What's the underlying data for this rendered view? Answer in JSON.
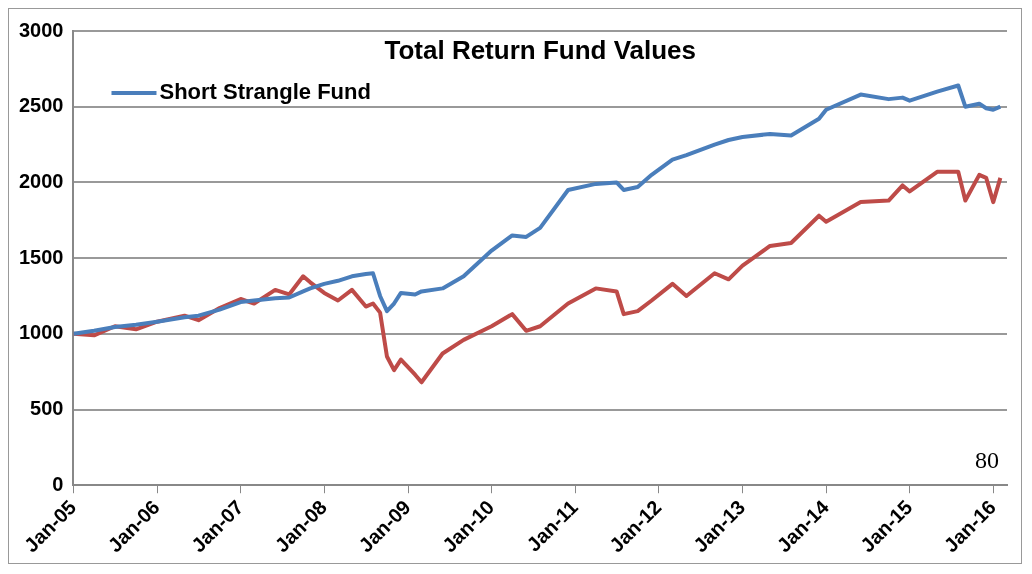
{
  "chart_data": {
    "type": "line",
    "title": "Total Return Fund Values",
    "x": [
      "2005-01",
      "2005-04",
      "2005-07",
      "2005-10",
      "2006-01",
      "2006-05",
      "2006-07",
      "2006-10",
      "2007-01",
      "2007-03",
      "2007-06",
      "2007-08",
      "2007-10",
      "2007-11",
      "2008-01",
      "2008-03",
      "2008-05",
      "2008-07",
      "2008-08",
      "2008-09",
      "2008-10",
      "2008-11",
      "2008-12",
      "2009-02",
      "2009-03",
      "2009-06",
      "2009-09",
      "2010-01",
      "2010-04",
      "2010-06",
      "2010-08",
      "2010-12",
      "2011-04",
      "2011-07",
      "2011-08",
      "2011-10",
      "2011-12",
      "2012-03",
      "2012-05",
      "2012-09",
      "2012-11",
      "2013-01",
      "2013-05",
      "2013-08",
      "2013-12",
      "2014-01",
      "2014-06",
      "2014-10",
      "2014-12",
      "2015-01",
      "2015-05",
      "2015-08",
      "2015-09",
      "2015-11",
      "2015-12",
      "2016-01",
      "2016-02"
    ],
    "series": [
      {
        "name": "Short Strangle Fund",
        "color": "#4a7ebb",
        "values": [
          1000,
          1020,
          1045,
          1060,
          1080,
          1110,
          1120,
          1160,
          1210,
          1220,
          1235,
          1240,
          1280,
          1300,
          1330,
          1350,
          1380,
          1395,
          1400,
          1250,
          1150,
          1200,
          1270,
          1260,
          1280,
          1300,
          1380,
          1550,
          1650,
          1640,
          1700,
          1950,
          1990,
          2000,
          1950,
          1970,
          2050,
          2150,
          2180,
          2250,
          2280,
          2300,
          2320,
          2310,
          2420,
          2480,
          2580,
          2550,
          2560,
          2540,
          2600,
          2640,
          2500,
          2520,
          2490,
          2480,
          2500
        ]
      },
      {
        "color": "#be4b48",
        "values": [
          1000,
          990,
          1050,
          1030,
          1080,
          1120,
          1090,
          1170,
          1230,
          1200,
          1290,
          1260,
          1380,
          1340,
          1270,
          1220,
          1290,
          1180,
          1200,
          1140,
          850,
          760,
          830,
          730,
          680,
          870,
          960,
          1050,
          1130,
          1020,
          1050,
          1200,
          1300,
          1280,
          1130,
          1150,
          1220,
          1330,
          1250,
          1400,
          1360,
          1450,
          1580,
          1600,
          1780,
          1740,
          1870,
          1880,
          1980,
          1940,
          2070,
          2070,
          1880,
          2050,
          2030,
          1870,
          2030
        ]
      }
    ],
    "xlim": [
      "2005-01",
      "2016-03"
    ],
    "xticks": [
      {
        "value": "2005-01",
        "label": "Jan-05"
      },
      {
        "value": "2006-01",
        "label": "Jan-06"
      },
      {
        "value": "2007-01",
        "label": "Jan-07"
      },
      {
        "value": "2008-01",
        "label": "Jan-08"
      },
      {
        "value": "2009-01",
        "label": "Jan-09"
      },
      {
        "value": "2010-01",
        "label": "Jan-10"
      },
      {
        "value": "2011-01",
        "label": "Jan-11"
      },
      {
        "value": "2012-01",
        "label": "Jan-12"
      },
      {
        "value": "2013-01",
        "label": "Jan-13"
      },
      {
        "value": "2014-01",
        "label": "Jan-14"
      },
      {
        "value": "2015-01",
        "label": "Jan-15"
      },
      {
        "value": "2016-01",
        "label": "Jan-16"
      }
    ],
    "ylim": [
      0,
      3000
    ],
    "yticks": [
      0,
      500,
      1000,
      1500,
      2000,
      2500,
      3000
    ],
    "grid": "y",
    "legend": "top left",
    "marker": "none",
    "line_style": "solid",
    "annotations": [
      "80"
    ]
  }
}
